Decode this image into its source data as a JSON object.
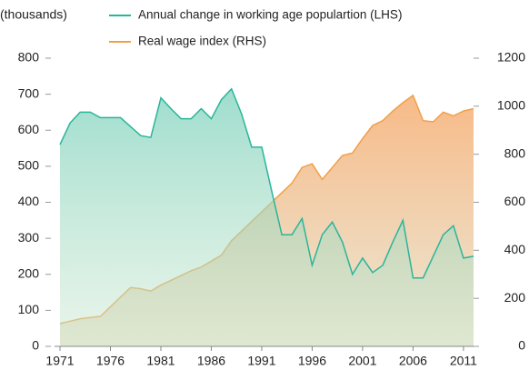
{
  "chart_data": {
    "type": "area",
    "y_label": "(thousands)",
    "x": [
      1971,
      1972,
      1973,
      1974,
      1975,
      1976,
      1977,
      1978,
      1979,
      1980,
      1981,
      1982,
      1983,
      1984,
      1985,
      1986,
      1987,
      1988,
      1989,
      1990,
      1991,
      1992,
      1993,
      1994,
      1995,
      1996,
      1997,
      1998,
      1999,
      2000,
      2001,
      2002,
      2003,
      2004,
      2005,
      2006,
      2007,
      2008,
      2009,
      2010,
      2011,
      2012
    ],
    "series": [
      {
        "name": "Annual change in working age populartion (LHS)",
        "color": "#2ab59a",
        "axis": "y",
        "values": [
          560,
          620,
          650,
          650,
          635,
          635,
          635,
          610,
          585,
          580,
          690,
          660,
          632,
          632,
          660,
          632,
          685,
          715,
          645,
          553,
          553,
          430,
          310,
          310,
          355,
          225,
          310,
          345,
          290,
          200,
          245,
          205,
          225,
          290,
          350,
          190,
          190,
          250,
          310,
          335,
          245,
          250
        ]
      },
      {
        "name": "Real wage index (RHS)",
        "color": "#f0a048",
        "axis": "y2",
        "values": [
          95,
          105,
          115,
          120,
          125,
          165,
          205,
          245,
          240,
          230,
          255,
          275,
          295,
          315,
          330,
          355,
          380,
          440,
          480,
          520,
          560,
          600,
          640,
          680,
          745,
          760,
          695,
          745,
          795,
          805,
          865,
          920,
          940,
          980,
          1015,
          1045,
          940,
          935,
          975,
          960,
          980,
          990
        ]
      }
    ],
    "xlim": [
      1971,
      2012
    ],
    "xticks": [
      1971,
      1976,
      1981,
      1986,
      1991,
      1996,
      2001,
      2006,
      2011
    ],
    "ylim": [
      0,
      800
    ],
    "yticks": [
      0,
      100,
      200,
      300,
      400,
      500,
      600,
      700,
      800
    ],
    "y2lim": [
      0,
      1200
    ],
    "y2ticks": [
      0,
      200,
      400,
      600,
      800,
      1000,
      1200
    ]
  }
}
